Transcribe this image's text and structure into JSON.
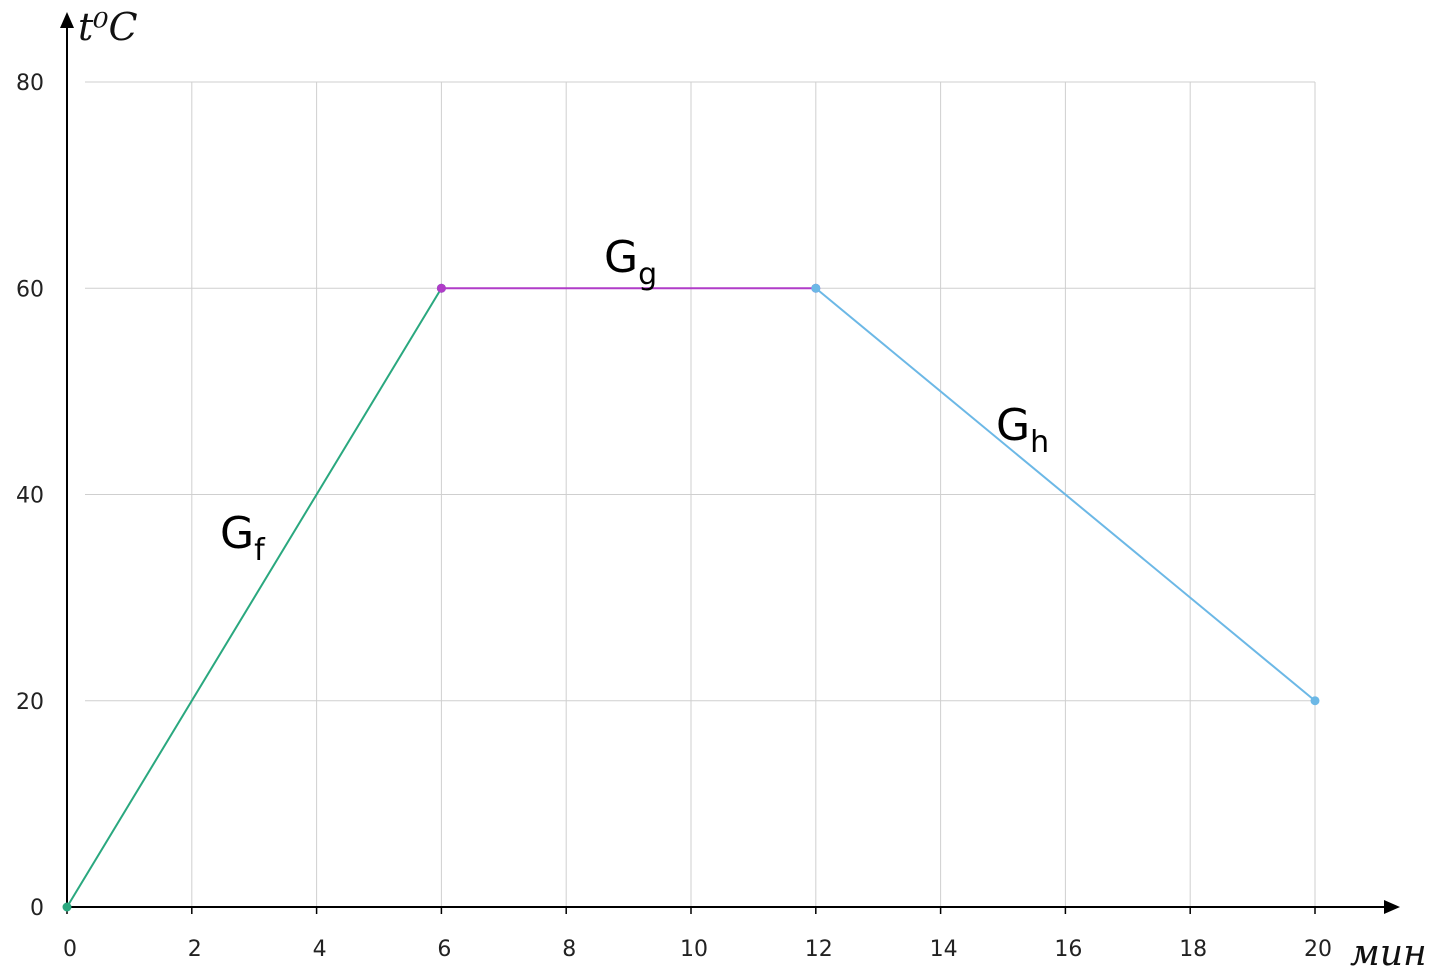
{
  "chart_data": {
    "type": "line",
    "xlabel": "мин",
    "ylabel": "t⁰C",
    "xlim": [
      0,
      20
    ],
    "ylim": [
      0,
      80
    ],
    "x_ticks": [
      "0",
      "2",
      "4",
      "6",
      "8",
      "10",
      "12",
      "14",
      "16",
      "18",
      "20"
    ],
    "y_ticks": [
      "0",
      "20",
      "40",
      "60",
      "80"
    ],
    "grid": true,
    "series": [
      {
        "name": "Gf",
        "label_main": "G",
        "label_sub": "f",
        "color": "#2aa87f",
        "x": [
          0,
          6
        ],
        "y": [
          0,
          60
        ]
      },
      {
        "name": "Gg",
        "label_main": "G",
        "label_sub": "g",
        "color": "#b03cc8",
        "x": [
          6,
          12
        ],
        "y": [
          60,
          60
        ]
      },
      {
        "name": "Gh",
        "label_main": "G",
        "label_sub": "h",
        "color": "#6cb8e6",
        "x": [
          12,
          20
        ],
        "y": [
          60,
          20
        ]
      }
    ]
  }
}
